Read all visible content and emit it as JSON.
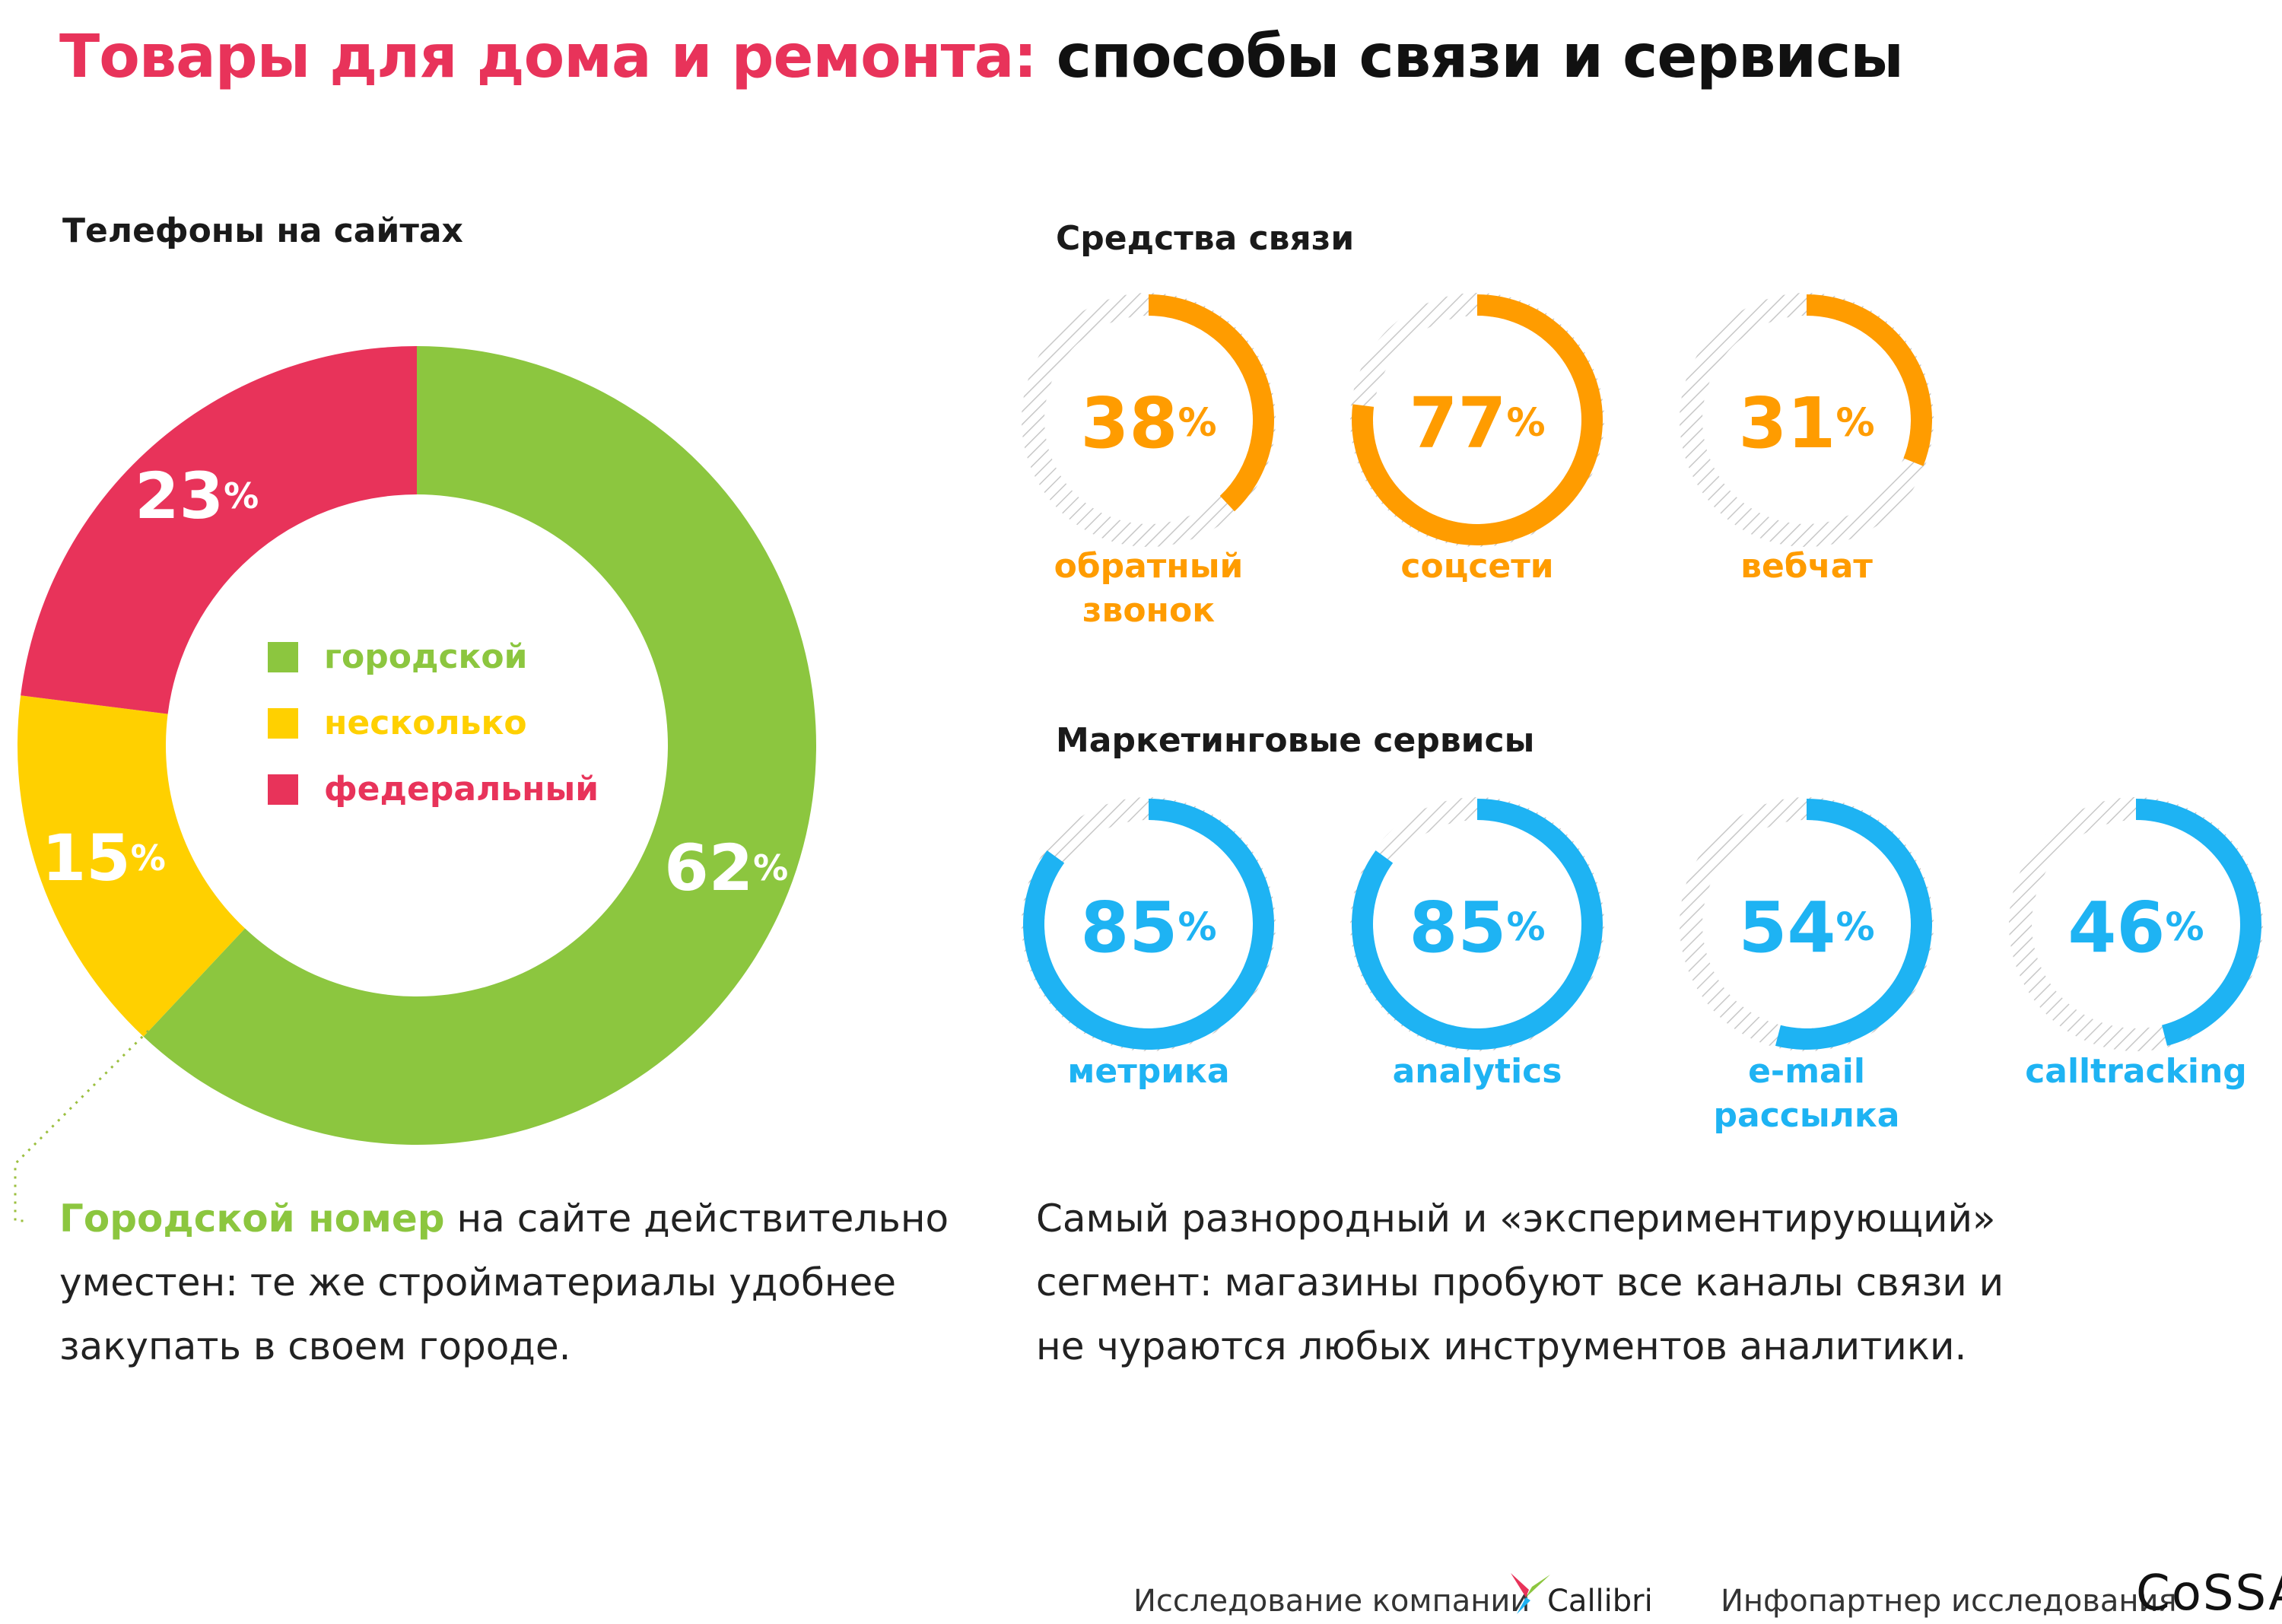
{
  "title": {
    "accent": "Товары для дома и ремонта:",
    "rest": " способы связи и сервисы"
  },
  "colors": {
    "accent_red": "#e8335a",
    "green": "#8cc63f",
    "yellow": "#ffd000",
    "orange": "#ff9c00",
    "blue": "#1eb3f3",
    "hatch": "#c8c8c8"
  },
  "sections": {
    "phones": "Телефоны на сайтах",
    "contact": "Средства связи",
    "marketing": "Маркетинговые сервисы"
  },
  "chart_data": [
    {
      "type": "pie",
      "title": "Телефоны на сайтах",
      "categories": [
        "городской",
        "несколько",
        "федеральный"
      ],
      "values": [
        62,
        15,
        23
      ],
      "unit": "%",
      "colors": [
        "#8cc63f",
        "#ffd000",
        "#e8335a"
      ],
      "legend": "center"
    },
    {
      "type": "pie",
      "title": "Средства связи",
      "categories": [
        "обратный звонок",
        "соцсети",
        "вебчат"
      ],
      "values": [
        38,
        77,
        31
      ],
      "unit": "%",
      "color": "#ff9c00"
    },
    {
      "type": "pie",
      "title": "Маркетинговые сервисы",
      "categories": [
        "метрика",
        "analytics",
        "e-mail рассылка",
        "calltracking"
      ],
      "values": [
        85,
        85,
        54,
        46
      ],
      "unit": "%",
      "color": "#1eb3f3"
    }
  ],
  "contact_labels": [
    [
      "обратный",
      "звонок"
    ],
    [
      "соцсети"
    ],
    [
      "вебчат"
    ]
  ],
  "marketing_labels": [
    [
      "метрика"
    ],
    [
      "analytics"
    ],
    [
      "e-mail",
      "рассылка"
    ],
    [
      "calltracking"
    ]
  ],
  "desc_left": {
    "highlight": "Городской номер",
    "text": " на сайте действительно уместен: те же стройматериалы удобнее закупать в своем городе."
  },
  "desc_right": "Самый разнородный и «экспериментирующий» сегмент: магазины пробуют все каналы связи и не чураются любых инструментов аналитики.",
  "footer": {
    "research": "Исследование компании",
    "callibri": "Callibri",
    "partner": "Инфопартнер исследования",
    "cossa": "CoSSA"
  }
}
